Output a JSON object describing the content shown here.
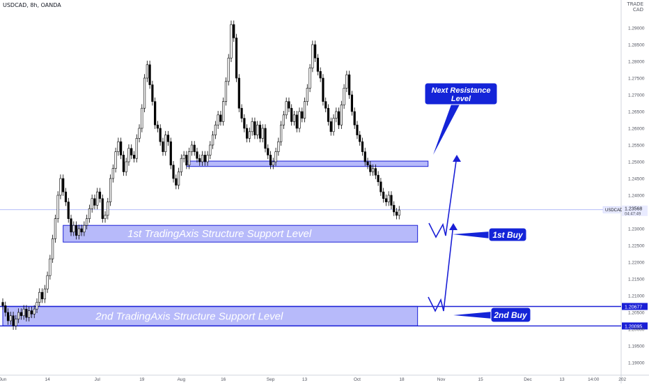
{
  "header": {
    "title": "USDCAD, 8h, OANDA",
    "currency_top": "TRADE",
    "currency": "CAD"
  },
  "colors": {
    "zone_fill": "#7c82f5",
    "zone_border": "#1a1fd6",
    "line": "#1a1fd6",
    "candle_up": "#ffffff",
    "candle_down": "#000000",
    "wick": "#000000",
    "callout_fill": "#1424d8",
    "callout_text": "#ffffff",
    "axis_text": "#50535e",
    "price_line": "#9aa3f5",
    "price_label": "#131722"
  },
  "chart_data": {
    "type": "candlestick",
    "symbol": "USDCAD",
    "timeframe": "8h",
    "source": "OANDA",
    "ylim": [
      1.1875,
      1.2975
    ],
    "y_ticks": [
      "1.29000",
      "1.28500",
      "1.28000",
      "1.27500",
      "1.27000",
      "1.26500",
      "1.26000",
      "1.25500",
      "1.25000",
      "1.24500",
      "1.24000",
      "1.23500",
      "1.23000",
      "1.22500",
      "1.22000",
      "1.21500",
      "1.21000",
      "1.20500",
      "1.20000",
      "1.19500",
      "1.19000"
    ],
    "x_labels": [
      {
        "label": "Jun",
        "i": 0
      },
      {
        "label": "14",
        "i": 17
      },
      {
        "label": "Jul",
        "i": 36
      },
      {
        "label": "19",
        "i": 53
      },
      {
        "label": "Aug",
        "i": 68
      },
      {
        "label": "16",
        "i": 84
      },
      {
        "label": "Sep",
        "i": 102
      },
      {
        "label": "13",
        "i": 115
      },
      {
        "label": "Oct",
        "i": 135
      },
      {
        "label": "18",
        "i": 152
      },
      {
        "label": "Nov",
        "i": 167
      },
      {
        "label": "15",
        "i": 182
      },
      {
        "label": "Dec",
        "i": 200
      },
      {
        "label": "13",
        "i": 213
      },
      {
        "label": "14:00",
        "i": 225
      },
      {
        "label": "202",
        "i": 236
      }
    ],
    "closes": [
      1.207,
      1.205,
      1.2025,
      1.204,
      1.201,
      1.203,
      1.205,
      1.204,
      1.206,
      1.2035,
      1.2055,
      1.2045,
      1.206,
      1.208,
      1.211,
      1.209,
      1.212,
      1.216,
      1.221,
      1.227,
      1.233,
      1.24,
      1.245,
      1.241,
      1.238,
      1.233,
      1.229,
      1.231,
      1.228,
      1.23,
      1.229,
      1.231,
      1.233,
      1.236,
      1.239,
      1.237,
      1.241,
      1.239,
      1.233,
      1.234,
      1.238,
      1.245,
      1.248,
      1.253,
      1.256,
      1.252,
      1.247,
      1.25,
      1.254,
      1.252,
      1.251,
      1.257,
      1.26,
      1.266,
      1.275,
      1.279,
      1.273,
      1.268,
      1.261,
      1.26,
      1.256,
      1.253,
      1.258,
      1.256,
      1.249,
      1.245,
      1.243,
      1.247,
      1.251,
      1.252,
      1.249,
      1.253,
      1.255,
      1.253,
      1.251,
      1.25,
      1.252,
      1.25,
      1.252,
      1.255,
      1.258,
      1.261,
      1.264,
      1.262,
      1.268,
      1.274,
      1.281,
      1.291,
      1.287,
      1.275,
      1.266,
      1.263,
      1.26,
      1.257,
      1.259,
      1.262,
      1.258,
      1.261,
      1.257,
      1.26,
      1.254,
      1.252,
      1.249,
      1.25,
      1.253,
      1.256,
      1.261,
      1.264,
      1.268,
      1.266,
      1.262,
      1.264,
      1.26,
      1.265,
      1.263,
      1.268,
      1.272,
      1.278,
      1.285,
      1.281,
      1.277,
      1.275,
      1.268,
      1.266,
      1.262,
      1.259,
      1.263,
      1.265,
      1.261,
      1.267,
      1.272,
      1.276,
      1.27,
      1.265,
      1.261,
      1.258,
      1.256,
      1.253,
      1.25,
      1.249,
      1.247,
      1.248,
      1.246,
      1.244,
      1.241,
      1.239,
      1.238,
      1.24,
      1.237,
      1.235,
      1.234,
      1.2356
    ],
    "current_price": "1.23568",
    "current_label": "USDCAD",
    "countdown": "04:47:49",
    "zones": [
      {
        "label": "1st TradingAxis Structure Support Level",
        "from_i": 23,
        "to_i": 158,
        "low": 1.226,
        "high": 1.231
      },
      {
        "label": "2nd TradingAxis Structure Support Level",
        "from_i": 0,
        "to_i": 158,
        "low": 1.201,
        "high": 1.2068
      },
      {
        "label": "",
        "from_i": 70,
        "to_i": 162,
        "low": 1.2486,
        "high": 1.2502
      }
    ],
    "levels": [
      {
        "value": 1.20677,
        "label": "1.20677"
      },
      {
        "value": 1.20095,
        "label": "1.20095"
      }
    ],
    "annotations": {
      "resistance": "Next Resistance Level",
      "buy1": "1st Buy",
      "buy2": "2nd Buy"
    }
  }
}
